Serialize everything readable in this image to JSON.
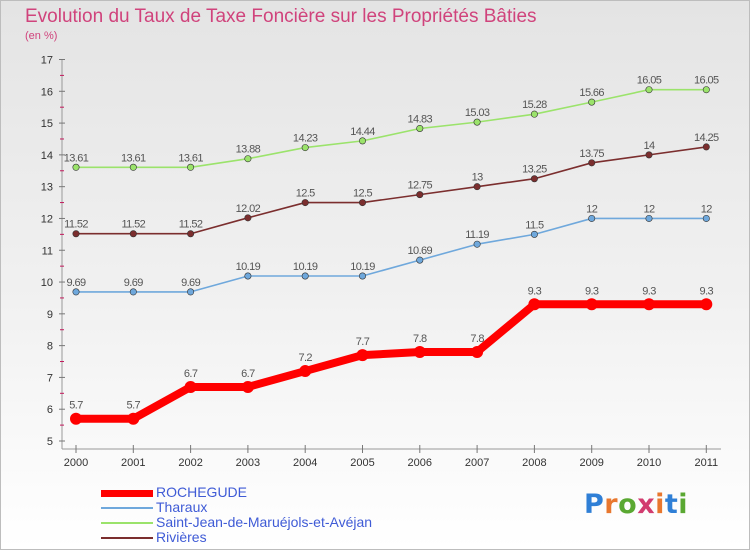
{
  "title": "Evolution du Taux de Taxe Foncière sur les Propriétés Bâties",
  "unit_label": "(en %)",
  "logo": {
    "letters": [
      "P",
      "r",
      "o",
      "x",
      "i",
      "t",
      "i"
    ],
    "colors": [
      "#2f7fd6",
      "#e8772e",
      "#5aa832",
      "#d23c6f",
      "#e8772e",
      "#2f7fd6",
      "#5aa832"
    ]
  },
  "chart_data": {
    "type": "line",
    "title": "Evolution du Taux de Taxe Foncière sur les Propriétés Bâties",
    "ylabel": "(en %)",
    "ylim": [
      5,
      17
    ],
    "yticks": [
      5,
      6,
      7,
      8,
      9,
      10,
      11,
      12,
      13,
      14,
      15,
      16,
      17
    ],
    "grid": false,
    "legend_position": "bottom-left",
    "x": [
      "2000",
      "2001",
      "2002",
      "2003",
      "2004",
      "2005",
      "2006",
      "2007",
      "2008",
      "2009",
      "2010",
      "2011"
    ],
    "series": [
      {
        "name": "ROCHEGUDE",
        "color": "#ff0000",
        "values": [
          5.7,
          5.7,
          6.7,
          6.7,
          7.2,
          7.7,
          7.8,
          7.8,
          9.3,
          9.3,
          9.3,
          9.3
        ],
        "labels": [
          "5.7",
          "5.7",
          "6.7",
          "6.7",
          "7.2",
          "7.7",
          "7.8",
          "7.8",
          "9.3",
          "9.3",
          "9.3",
          "9.3"
        ]
      },
      {
        "name": "Tharaux",
        "color": "#6fa8dc",
        "values": [
          9.69,
          9.69,
          9.69,
          10.19,
          10.19,
          10.19,
          10.69,
          11.19,
          11.5,
          12,
          12,
          12
        ],
        "labels": [
          "9.69",
          "9.69",
          "9.69",
          "10.19",
          "10.19",
          "10.19",
          "10.69",
          "11.19",
          "11.5",
          "12",
          "12",
          "12"
        ]
      },
      {
        "name": "Saint-Jean-de-Maruéjols-et-Avéjan",
        "color": "#9be36b",
        "values": [
          13.61,
          13.61,
          13.61,
          13.88,
          14.23,
          14.44,
          14.83,
          15.03,
          15.28,
          15.66,
          16.05,
          16.05
        ],
        "labels": [
          "13.61",
          "13.61",
          "13.61",
          "13.88",
          "14.23",
          "14.44",
          "14.83",
          "15.03",
          "15.28",
          "15.66",
          "16.05",
          "16.05"
        ]
      },
      {
        "name": "Rivières",
        "color": "#7b2e2e",
        "values": [
          11.52,
          11.52,
          11.52,
          12.02,
          12.5,
          12.5,
          12.75,
          13,
          13.25,
          13.75,
          14,
          14.25
        ],
        "labels": [
          "11.52",
          "11.52",
          "11.52",
          "12.02",
          "12.5",
          "12.5",
          "12.75",
          "13",
          "13.25",
          "13.75",
          "14",
          "14.25"
        ]
      }
    ]
  }
}
